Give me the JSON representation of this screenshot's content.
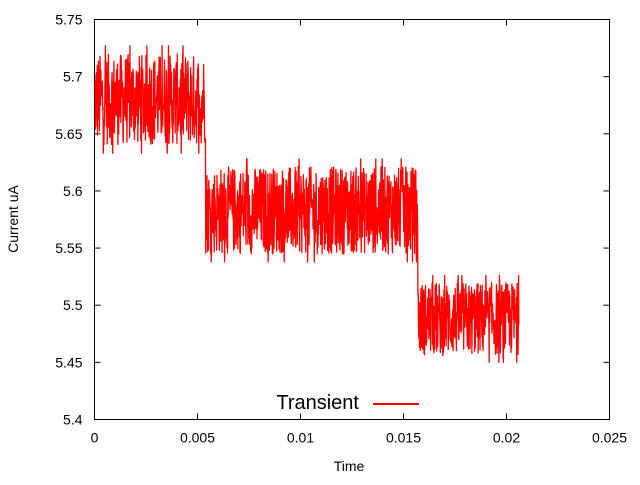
{
  "chart_data": {
    "type": "line",
    "title": "",
    "xlabel": "Time",
    "ylabel": "Current uA",
    "xlim": [
      0,
      0.025
    ],
    "ylim": [
      5.4,
      5.75
    ],
    "x_ticks": [
      "0",
      "0.005",
      "0.01",
      "0.015",
      "0.02",
      "0.025"
    ],
    "y_ticks": [
      "5.4",
      "5.45",
      "5.5",
      "5.55",
      "5.6",
      "5.65",
      "5.7",
      "5.75"
    ],
    "grid": false,
    "legend": {
      "position": "bottom-center",
      "entries": [
        "Transient"
      ]
    },
    "series": [
      {
        "name": "Transient",
        "color": "#ff0000",
        "style": "noisy step signal (random telegraph noise)",
        "segments": [
          {
            "x_start": 0.0,
            "x_end": 0.0054,
            "mean": 5.68,
            "min": 5.628,
            "max": 5.727
          },
          {
            "x_start": 0.0054,
            "x_end": 0.0157,
            "mean": 5.583,
            "min": 5.538,
            "max": 5.638
          },
          {
            "x_start": 0.0157,
            "x_end": 0.0206,
            "mean": 5.488,
            "min": 5.45,
            "max": 5.538
          }
        ],
        "transitions_x": [
          0.0054,
          0.0157
        ],
        "x_end": 0.0206
      }
    ]
  }
}
